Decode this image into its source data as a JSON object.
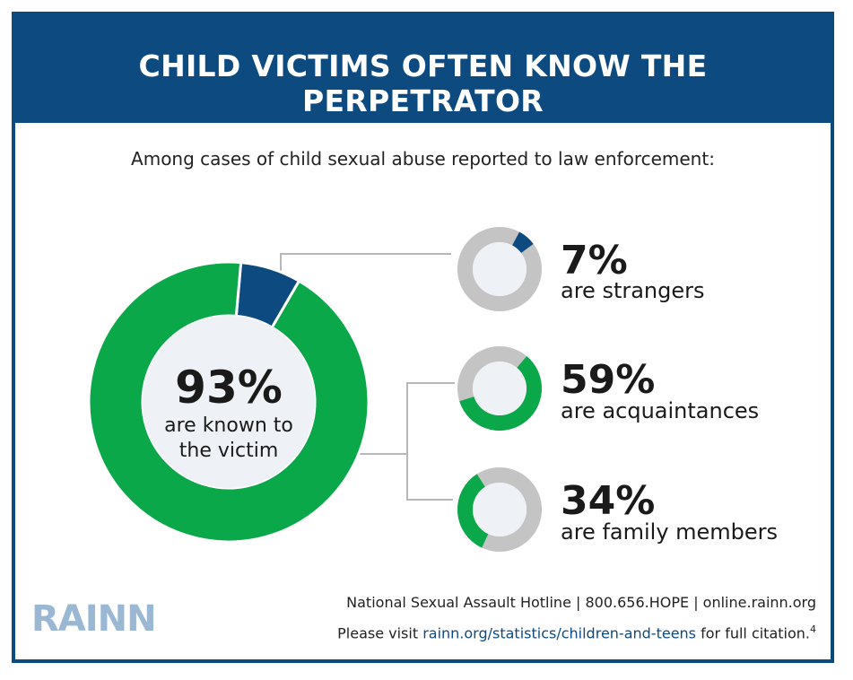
{
  "title": "CHILD VICTIMS OFTEN KNOW THE PERPETRATOR",
  "subtitle": "Among cases of child sexual abuse reported to law enforcement:",
  "colors": {
    "blue": "#0d4a80",
    "green": "#0ba84a",
    "gray": "#c4c4c4",
    "inner": "#eef1f5"
  },
  "chart_data": [
    {
      "type": "pie",
      "slices": [
        {
          "label": "are known to the victim",
          "value": 93
        },
        {
          "label": "are strangers",
          "value": 7
        }
      ],
      "center_value": "93%",
      "center_caption_lines": [
        "are known to",
        "the victim"
      ]
    },
    {
      "type": "pie",
      "label": "are strangers",
      "value": 7,
      "percent_text": "7%"
    },
    {
      "type": "pie",
      "label": "are acquaintances",
      "value": 59,
      "percent_text": "59%"
    },
    {
      "type": "pie",
      "label": "are family members",
      "value": 34,
      "percent_text": "34%"
    }
  ],
  "logo": "RAINN",
  "footer": {
    "hotline": "National Sexual Assault Hotline | 800.656.HOPE | online.rainn.org",
    "visit_prefix": "Please visit ",
    "link": "rainn.org/statistics/children-and-teens",
    "visit_suffix": " for full citation.",
    "footnote": "4"
  }
}
